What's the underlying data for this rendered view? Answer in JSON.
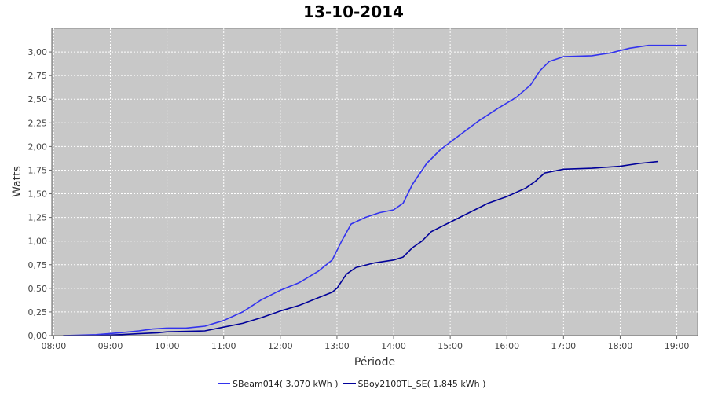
{
  "chart_data": {
    "type": "line",
    "title": "13-10-2014",
    "xlabel": "Période",
    "ylabel": "Watts",
    "xlim": [
      "07:58",
      "19:22"
    ],
    "ylim": [
      0,
      3.25
    ],
    "x_ticks": [
      "08:00",
      "09:00",
      "10:00",
      "11:00",
      "12:00",
      "13:00",
      "14:00",
      "15:00",
      "16:00",
      "17:00",
      "18:00",
      "19:00"
    ],
    "y_ticks": [
      "0,00",
      "0,25",
      "0,50",
      "0,75",
      "1,00",
      "1,25",
      "1,50",
      "1,75",
      "2,00",
      "2,25",
      "2,50",
      "2,75",
      "3,00"
    ],
    "grid": true,
    "legend_position": "bottom",
    "background": "#c8c8c8",
    "series": [
      {
        "name": "SBeam014( 3,070 kWh )",
        "color": "#3333ee",
        "points": [
          [
            "08:10",
            0.0
          ],
          [
            "08:45",
            0.01
          ],
          [
            "09:10",
            0.03
          ],
          [
            "09:30",
            0.05
          ],
          [
            "09:45",
            0.07
          ],
          [
            "10:00",
            0.08
          ],
          [
            "10:20",
            0.08
          ],
          [
            "10:40",
            0.1
          ],
          [
            "11:00",
            0.16
          ],
          [
            "11:20",
            0.25
          ],
          [
            "11:40",
            0.38
          ],
          [
            "12:00",
            0.48
          ],
          [
            "12:20",
            0.56
          ],
          [
            "12:40",
            0.68
          ],
          [
            "12:55",
            0.8
          ],
          [
            "13:05",
            1.0
          ],
          [
            "13:15",
            1.18
          ],
          [
            "13:30",
            1.25
          ],
          [
            "13:45",
            1.3
          ],
          [
            "14:00",
            1.33
          ],
          [
            "14:10",
            1.4
          ],
          [
            "14:20",
            1.6
          ],
          [
            "14:35",
            1.82
          ],
          [
            "14:50",
            1.97
          ],
          [
            "15:10",
            2.12
          ],
          [
            "15:30",
            2.27
          ],
          [
            "15:50",
            2.4
          ],
          [
            "16:10",
            2.52
          ],
          [
            "16:25",
            2.65
          ],
          [
            "16:35",
            2.8
          ],
          [
            "16:45",
            2.9
          ],
          [
            "17:00",
            2.95
          ],
          [
            "17:30",
            2.96
          ],
          [
            "17:50",
            2.99
          ],
          [
            "18:10",
            3.04
          ],
          [
            "18:30",
            3.07
          ],
          [
            "18:50",
            3.07
          ],
          [
            "19:10",
            3.07
          ]
        ]
      },
      {
        "name": "SBoy2100TL_SE( 1,845 kWh )",
        "color": "#000099",
        "points": [
          [
            "08:10",
            0.0
          ],
          [
            "08:45",
            0.0
          ],
          [
            "09:10",
            0.01
          ],
          [
            "09:30",
            0.02
          ],
          [
            "09:50",
            0.03
          ],
          [
            "10:00",
            0.04
          ],
          [
            "10:40",
            0.05
          ],
          [
            "11:00",
            0.09
          ],
          [
            "11:20",
            0.13
          ],
          [
            "11:40",
            0.19
          ],
          [
            "12:00",
            0.26
          ],
          [
            "12:20",
            0.32
          ],
          [
            "12:40",
            0.4
          ],
          [
            "12:55",
            0.46
          ],
          [
            "13:00",
            0.5
          ],
          [
            "13:10",
            0.65
          ],
          [
            "13:20",
            0.72
          ],
          [
            "13:40",
            0.77
          ],
          [
            "14:00",
            0.8
          ],
          [
            "14:10",
            0.83
          ],
          [
            "14:20",
            0.93
          ],
          [
            "14:30",
            1.0
          ],
          [
            "14:40",
            1.1
          ],
          [
            "15:00",
            1.2
          ],
          [
            "15:20",
            1.3
          ],
          [
            "15:40",
            1.4
          ],
          [
            "16:00",
            1.47
          ],
          [
            "16:20",
            1.56
          ],
          [
            "16:30",
            1.63
          ],
          [
            "16:40",
            1.72
          ],
          [
            "17:00",
            1.76
          ],
          [
            "17:30",
            1.77
          ],
          [
            "18:00",
            1.79
          ],
          [
            "18:20",
            1.82
          ],
          [
            "18:40",
            1.84
          ]
        ]
      }
    ]
  }
}
